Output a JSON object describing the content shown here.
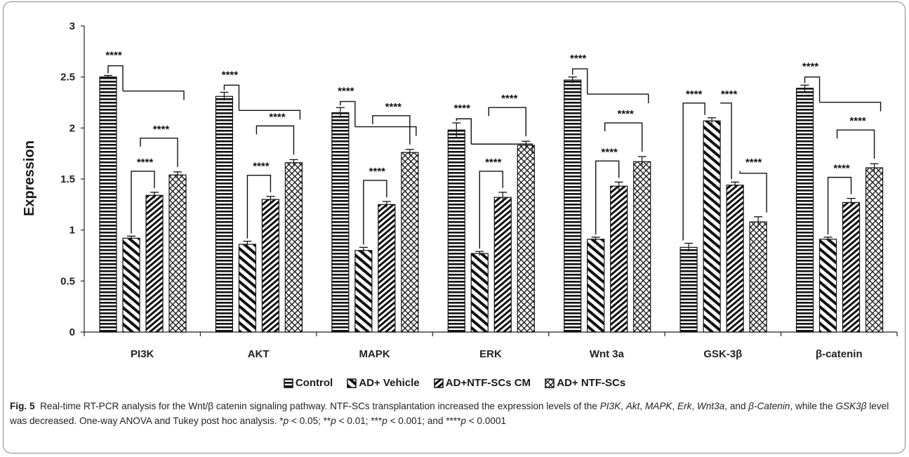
{
  "chart_data": {
    "type": "bar",
    "title": "",
    "xlabel": "",
    "ylabel": "Expression",
    "ylim": [
      0,
      3
    ],
    "yticks": [
      "0",
      "0.5",
      "1",
      "1.5",
      "2",
      "2.5",
      "3"
    ],
    "grid": false,
    "legend_position": "bottom",
    "categories": [
      "PI3K",
      "AKT",
      "MAPK",
      "ERK",
      "Wnt 3a",
      "GSK-3β",
      "β-catenin"
    ],
    "series": [
      {
        "name": "Control",
        "pattern": "horizontal-lines",
        "values": [
          2.5,
          2.31,
          2.15,
          1.98,
          2.47,
          0.83,
          2.39
        ],
        "errors": [
          0.015,
          0.04,
          0.05,
          0.07,
          0.03,
          0.04,
          0.03
        ]
      },
      {
        "name": "AD+ Vehicle",
        "pattern": "wide-diagonal-lines",
        "values": [
          0.92,
          0.86,
          0.8,
          0.77,
          0.91,
          2.07,
          0.91
        ],
        "errors": [
          0.02,
          0.03,
          0.03,
          0.02,
          0.02,
          0.03,
          0.02
        ]
      },
      {
        "name": "AD+NTF-SCs CM",
        "pattern": "narrow-diagonal-lines",
        "values": [
          1.34,
          1.3,
          1.25,
          1.32,
          1.43,
          1.44,
          1.27
        ],
        "errors": [
          0.03,
          0.03,
          0.03,
          0.05,
          0.04,
          0.03,
          0.04
        ]
      },
      {
        "name": "AD+ NTF-SCs",
        "pattern": "crosshatch",
        "values": [
          1.54,
          1.66,
          1.76,
          1.83,
          1.67,
          1.08,
          1.61
        ],
        "errors": [
          0.03,
          0.03,
          0.03,
          0.04,
          0.05,
          0.05,
          0.04
        ]
      }
    ],
    "significance_label": "****",
    "significance_brackets": [
      {
        "category": "PI3K",
        "from_series": 0,
        "to": "others",
        "label": "****"
      },
      {
        "category": "PI3K",
        "from_series": 1,
        "to_series": 2,
        "label": "****"
      },
      {
        "category": "PI3K",
        "from_series": 1,
        "to_series": 3,
        "label": "****"
      },
      {
        "category": "AKT",
        "from_series": 0,
        "to": "others",
        "label": "****"
      },
      {
        "category": "AKT",
        "from_series": 1,
        "to_series": 2,
        "label": "****"
      },
      {
        "category": "AKT",
        "from_series": 1,
        "to_series": 3,
        "label": "****"
      },
      {
        "category": "MAPK",
        "from_series": 0,
        "to": "others",
        "label": "****"
      },
      {
        "category": "MAPK",
        "from_series": 1,
        "to_series": 2,
        "label": "****"
      },
      {
        "category": "MAPK",
        "from_series": 1,
        "to_series": 3,
        "label": "****"
      },
      {
        "category": "ERK",
        "from_series": 0,
        "to": "others",
        "label": "****"
      },
      {
        "category": "ERK",
        "from_series": 1,
        "to_series": 2,
        "label": "****"
      },
      {
        "category": "ERK",
        "from_series": 1,
        "to_series": 3,
        "label": "****"
      },
      {
        "category": "Wnt 3a",
        "from_series": 0,
        "to": "others",
        "label": "****"
      },
      {
        "category": "Wnt 3a",
        "from_series": 1,
        "to_series": 2,
        "label": "****"
      },
      {
        "category": "Wnt 3a",
        "from_series": 1,
        "to_series": 3,
        "label": "****"
      },
      {
        "category": "GSK-3β",
        "from_series": 0,
        "to_series": 1,
        "label": "****"
      },
      {
        "category": "GSK-3β",
        "from_series": 1,
        "to_series": 2,
        "label": "****"
      },
      {
        "category": "GSK-3β",
        "from_series": 2,
        "to_series": 3,
        "label": "****"
      },
      {
        "category": "β-catenin",
        "from_series": 0,
        "to": "others",
        "label": "****"
      },
      {
        "category": "β-catenin",
        "from_series": 1,
        "to_series": 2,
        "label": "****"
      },
      {
        "category": "β-catenin",
        "from_series": 1,
        "to_series": 3,
        "label": "****"
      }
    ]
  },
  "caption": {
    "fig_label": "Fig. 5",
    "lead": "Real-time RT-PCR analysis for the Wnt/β catenin signaling pathway. NTF-SCs transplantation increased the expression levels of the ",
    "g1": "PI3K",
    "s1": ", ",
    "g2": "Akt",
    "s2": ", ",
    "g3": "MAPK",
    "s3": ", ",
    "g4": "Erk",
    "s4": ", ",
    "g5": "Wnt3a",
    "s5": ", and ",
    "g6": "β-Catenin",
    "s6": ", while the ",
    "g7": "GSK3β",
    "s7": " level was decreased. One-way ANOVA and Tukey post hoc analysis. *",
    "p1": "p",
    "s8": " < 0.05; **",
    "p2": "p",
    "s9": " < 0.01; ***",
    "p3": "p",
    "s10": " < 0.001; and ****",
    "p4": "p",
    "s11": " < 0.0001"
  }
}
